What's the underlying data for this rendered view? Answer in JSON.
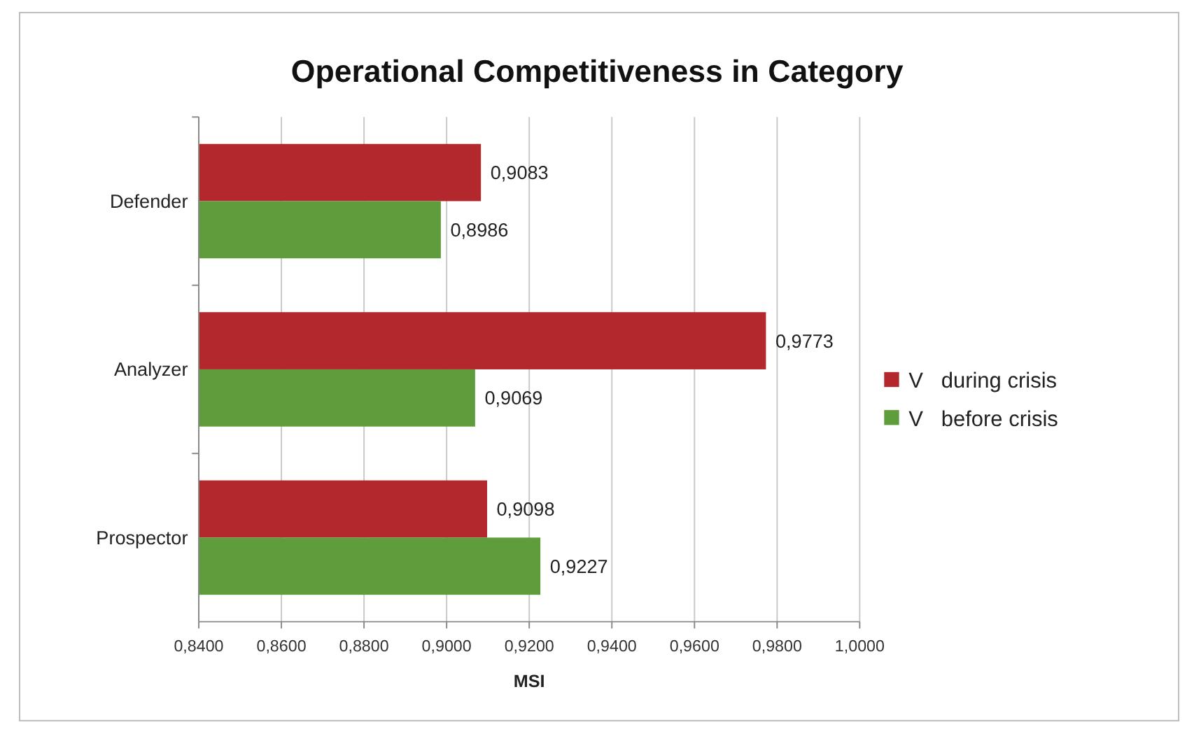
{
  "chart_data": {
    "type": "bar",
    "orientation": "horizontal",
    "title": "Operational Competitiveness in Category",
    "xlabel": "MSI",
    "categories": [
      "Defender",
      "Analyzer",
      "Prospector"
    ],
    "series": [
      {
        "name": "V   during crisis",
        "color": "#b2282c",
        "values": [
          0.9083,
          0.9773,
          0.9098
        ],
        "value_labels": [
          "0,9083",
          "0,9773",
          "0,9098"
        ]
      },
      {
        "name": "V   before crisis",
        "color": "#5e9c3c",
        "values": [
          0.8986,
          0.9069,
          0.9227
        ],
        "value_labels": [
          "0,8986",
          "0,9069",
          "0,9227"
        ]
      }
    ],
    "xlim": [
      0.84,
      1.0
    ],
    "xticks": [
      {
        "value": 0.84,
        "label": "0,8400"
      },
      {
        "value": 0.86,
        "label": "0,8600"
      },
      {
        "value": 0.88,
        "label": "0,8800"
      },
      {
        "value": 0.9,
        "label": "0,9000"
      },
      {
        "value": 0.92,
        "label": "0,9200"
      },
      {
        "value": 0.94,
        "label": "0,9400"
      },
      {
        "value": 0.96,
        "label": "0,9600"
      },
      {
        "value": 0.98,
        "label": "0,9800"
      },
      {
        "value": 1.0,
        "label": "1,0000"
      }
    ],
    "grid": "x",
    "legend": "right"
  }
}
